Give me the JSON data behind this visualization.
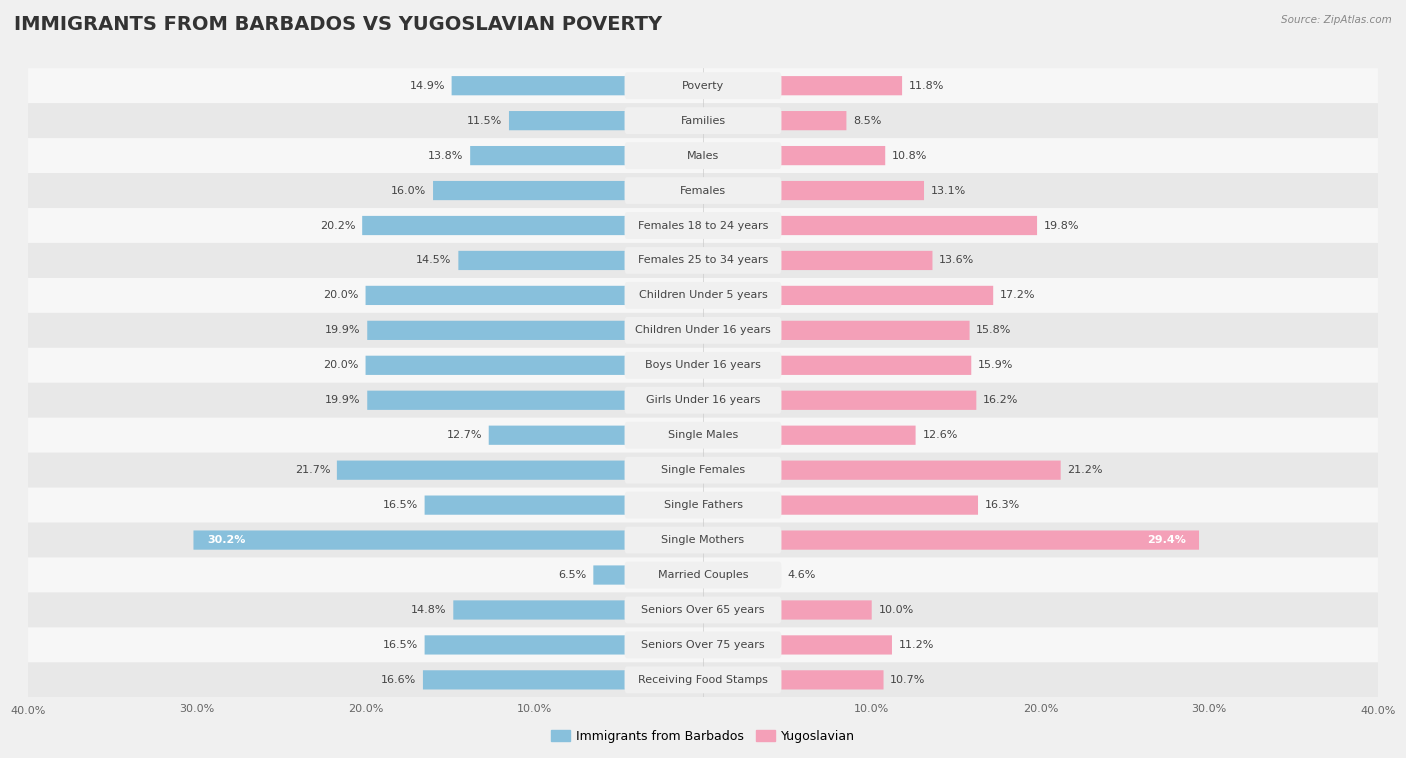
{
  "title": "IMMIGRANTS FROM BARBADOS VS YUGOSLAVIAN POVERTY",
  "source": "Source: ZipAtlas.com",
  "categories": [
    "Poverty",
    "Families",
    "Males",
    "Females",
    "Females 18 to 24 years",
    "Females 25 to 34 years",
    "Children Under 5 years",
    "Children Under 16 years",
    "Boys Under 16 years",
    "Girls Under 16 years",
    "Single Males",
    "Single Females",
    "Single Fathers",
    "Single Mothers",
    "Married Couples",
    "Seniors Over 65 years",
    "Seniors Over 75 years",
    "Receiving Food Stamps"
  ],
  "barbados_values": [
    14.9,
    11.5,
    13.8,
    16.0,
    20.2,
    14.5,
    20.0,
    19.9,
    20.0,
    19.9,
    12.7,
    21.7,
    16.5,
    30.2,
    6.5,
    14.8,
    16.5,
    16.6
  ],
  "yugoslavian_values": [
    11.8,
    8.5,
    10.8,
    13.1,
    19.8,
    13.6,
    17.2,
    15.8,
    15.9,
    16.2,
    12.6,
    21.2,
    16.3,
    29.4,
    4.6,
    10.0,
    11.2,
    10.7
  ],
  "barbados_color": "#88C0DC",
  "yugoslavian_color": "#F4A0B8",
  "background_color": "#f0f0f0",
  "row_light_color": "#f7f7f7",
  "row_dark_color": "#e8e8e8",
  "label_bg_color": "#f0f0f0",
  "xlim": 40.0,
  "bar_height": 0.55,
  "title_fontsize": 14,
  "label_fontsize": 8,
  "value_fontsize": 8,
  "legend_fontsize": 9,
  "axis_label_fontsize": 8
}
